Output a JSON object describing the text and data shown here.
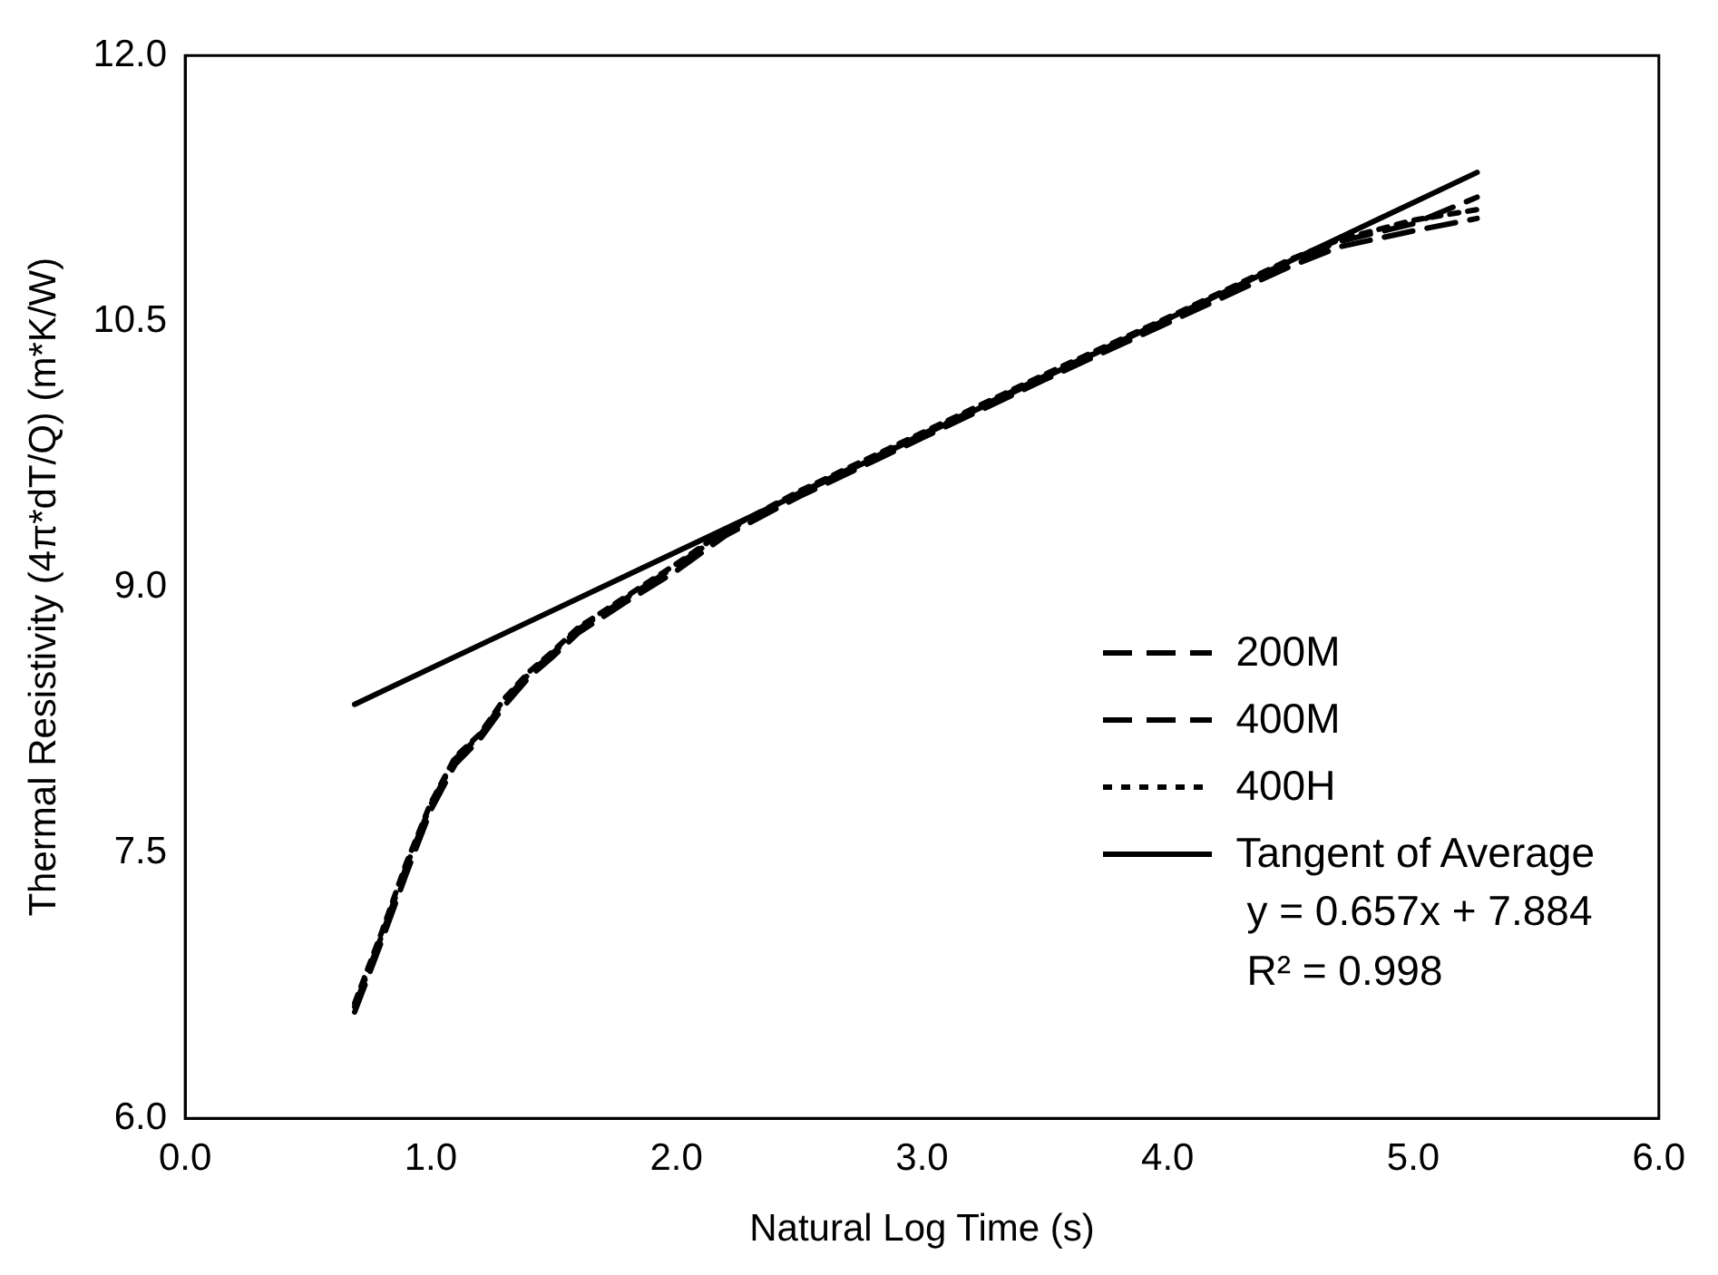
{
  "chart_data": {
    "type": "line",
    "xlabel": "Natural Log Time (s)",
    "ylabel": "Thermal Resistivity (4π*dT/Q) (m*K/W)",
    "xlim": [
      0,
      6
    ],
    "ylim": [
      6,
      12
    ],
    "xticks": [
      {
        "value": 0,
        "label": "0.0"
      },
      {
        "value": 1,
        "label": "1.0"
      },
      {
        "value": 2,
        "label": "2.0"
      },
      {
        "value": 3,
        "label": "3.0"
      },
      {
        "value": 4,
        "label": "4.0"
      },
      {
        "value": 5,
        "label": "5.0"
      },
      {
        "value": 6,
        "label": "6.0"
      }
    ],
    "yticks": [
      {
        "value": 6,
        "label": "6.0"
      },
      {
        "value": 7.5,
        "label": "7.5"
      },
      {
        "value": 9,
        "label": "9.0"
      },
      {
        "value": 10.5,
        "label": "10.5"
      },
      {
        "value": 12,
        "label": "12.0"
      }
    ],
    "grid": false,
    "legend": "bottom right",
    "marker": "none",
    "series": [
      {
        "name": "200M",
        "color": "#000000",
        "line_style": "dashed",
        "x": [
          0.69,
          0.8,
          0.9,
          1.0,
          1.1,
          1.2,
          1.3,
          1.4,
          1.5,
          1.6,
          1.8,
          2.0,
          2.2,
          2.5,
          3.0,
          3.5,
          4.0,
          4.5,
          4.7,
          5.0,
          5.26
        ],
        "values": [
          6.6,
          7.0,
          7.38,
          7.74,
          8.0,
          8.14,
          8.33,
          8.49,
          8.61,
          8.74,
          8.92,
          9.09,
          9.29,
          9.51,
          9.84,
          10.17,
          10.49,
          10.81,
          10.92,
          11.01,
          11.08
        ]
      },
      {
        "name": "400M",
        "color": "#000000",
        "line_style": "dashed",
        "x": [
          0.69,
          0.8,
          0.9,
          1.0,
          1.1,
          1.2,
          1.3,
          1.4,
          1.5,
          1.6,
          1.8,
          2.0,
          2.2,
          2.5,
          3.0,
          3.5,
          4.0,
          4.5,
          4.7,
          5.0,
          5.26
        ],
        "values": [
          6.63,
          7.03,
          7.42,
          7.77,
          8.03,
          8.16,
          8.36,
          8.51,
          8.63,
          8.76,
          8.94,
          9.12,
          9.31,
          9.53,
          9.86,
          10.19,
          10.51,
          10.84,
          10.95,
          11.05,
          11.2
        ]
      },
      {
        "name": "400H",
        "color": "#000000",
        "line_style": "dotted",
        "x": [
          0.69,
          0.8,
          0.9,
          1.0,
          1.1,
          1.2,
          1.3,
          1.4,
          1.5,
          1.6,
          1.8,
          2.0,
          2.2,
          2.5,
          3.0,
          3.5,
          4.0,
          4.5,
          4.7,
          5.0,
          5.26
        ],
        "values": [
          6.65,
          7.05,
          7.44,
          7.78,
          8.04,
          8.17,
          8.37,
          8.52,
          8.64,
          8.77,
          8.95,
          9.13,
          9.32,
          9.54,
          9.87,
          10.2,
          10.52,
          10.85,
          10.96,
          11.07,
          11.13
        ]
      },
      {
        "name": "Tangent of Average",
        "color": "#000000",
        "line_style": "solid",
        "x": [
          0.69,
          5.26
        ],
        "values": [
          8.337,
          11.34
        ]
      }
    ],
    "annotations": [
      "y = 0.657x + 7.884",
      "R² = 0.998"
    ]
  }
}
